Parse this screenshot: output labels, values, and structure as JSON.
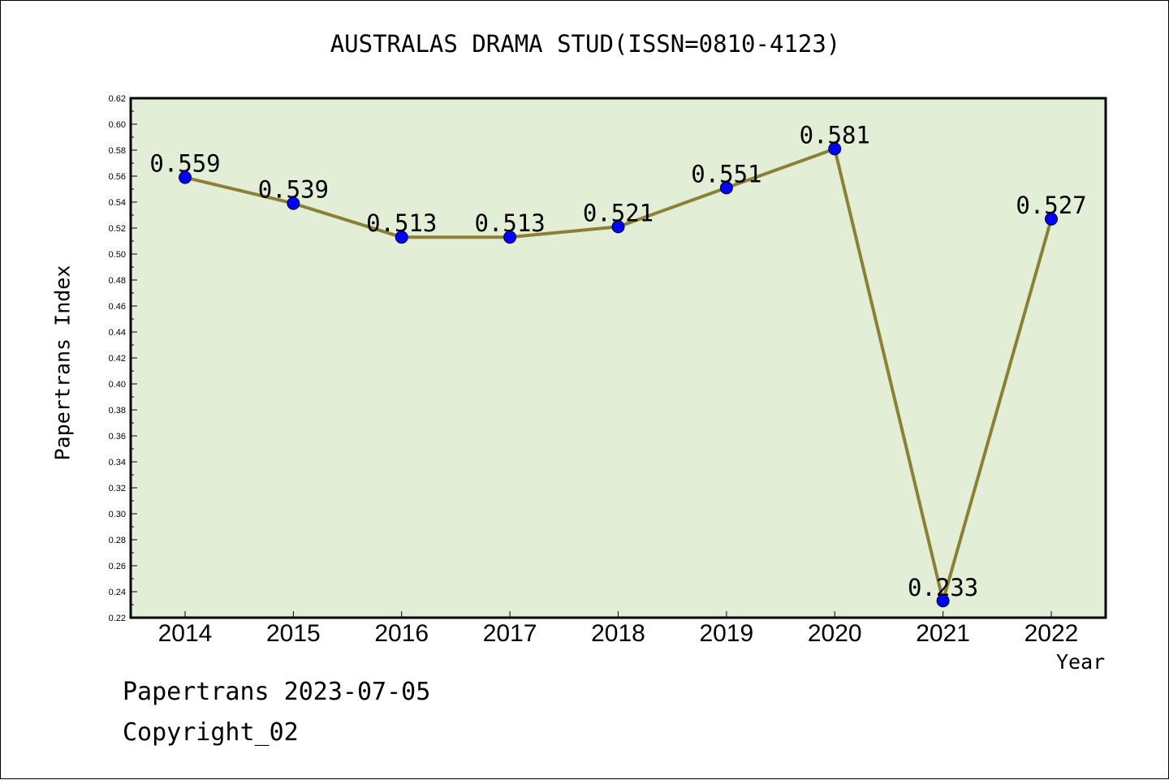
{
  "chart_data": {
    "type": "line",
    "title": "AUSTRALAS DRAMA STUD(ISSN=0810-4123)",
    "xlabel": "Year",
    "ylabel": "Papertrans Index",
    "categories": [
      "2014",
      "2015",
      "2016",
      "2017",
      "2018",
      "2019",
      "2020",
      "2021",
      "2022"
    ],
    "values": [
      0.559,
      0.539,
      0.513,
      0.513,
      0.521,
      0.551,
      0.581,
      0.233,
      0.527
    ],
    "data_labels": [
      "0.559",
      "0.539",
      "0.513",
      "0.513",
      "0.521",
      "0.551",
      "0.581",
      "0.233",
      "0.527"
    ],
    "ylim": [
      0.22,
      0.62
    ],
    "yticks": [
      "0.22",
      "0.24",
      "0.26",
      "0.28",
      "0.30",
      "0.32",
      "0.34",
      "0.36",
      "0.38",
      "0.40",
      "0.42",
      "0.44",
      "0.46",
      "0.48",
      "0.50",
      "0.52",
      "0.54",
      "0.56",
      "0.58",
      "0.60",
      "0.62"
    ],
    "grid": false,
    "colors": {
      "plot_background": "#e2efd6",
      "line": "#8b8036",
      "marker": "#0000ff"
    }
  },
  "footer": {
    "date_text": "Papertrans 2023-07-05",
    "copyright_text": "Copyright_02"
  }
}
